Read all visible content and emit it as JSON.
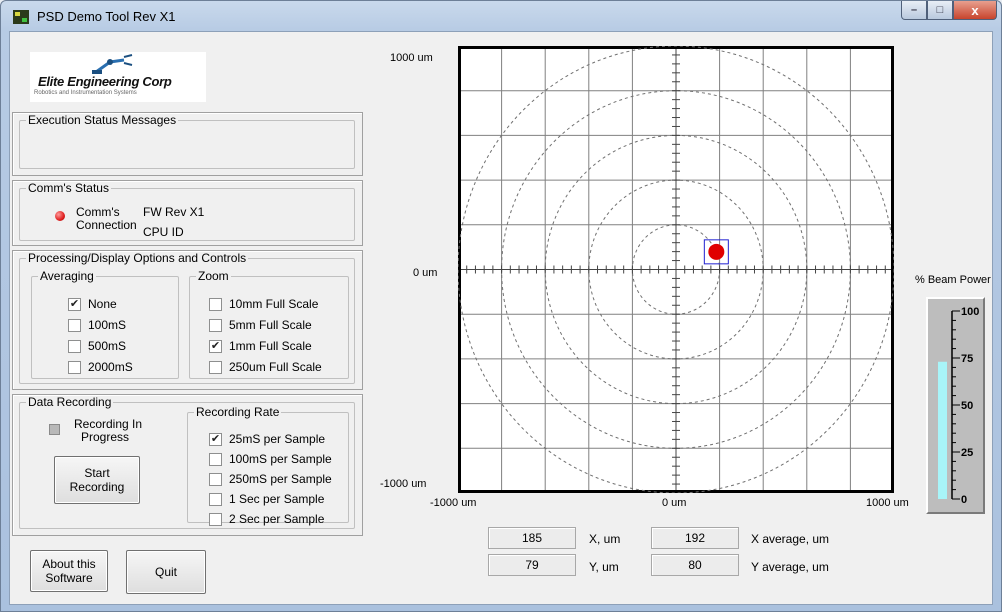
{
  "window": {
    "title": "PSD Demo Tool  Rev X1",
    "minimize": "–",
    "maximize": "□",
    "close": "x"
  },
  "logo": {
    "name": "Elite Engineering Corp",
    "tagline": "Robotics and Instrumentation Systems"
  },
  "execution_status": {
    "title": "Execution Status Messages",
    "message": ""
  },
  "comms_status": {
    "title": "Comm's Status",
    "connection_label_1": "Comm's",
    "connection_label_2": "Connection",
    "led_color": "#e02020",
    "fw_rev": "FW Rev X1",
    "cpu_id": "CPU ID"
  },
  "processing": {
    "title": "Processing/Display Options and Controls",
    "averaging": {
      "title": "Averaging",
      "options": [
        {
          "label": "None",
          "checked": true
        },
        {
          "label": "100mS",
          "checked": false
        },
        {
          "label": "500mS",
          "checked": false
        },
        {
          "label": "2000mS",
          "checked": false
        }
      ]
    },
    "zoom": {
      "title": "Zoom",
      "options": [
        {
          "label": "10mm Full Scale",
          "checked": false
        },
        {
          "label": "5mm Full Scale",
          "checked": false
        },
        {
          "label": "1mm Full Scale",
          "checked": true
        },
        {
          "label": "250um Full Scale",
          "checked": false
        }
      ]
    }
  },
  "data_recording": {
    "title": "Data Recording",
    "indicator_label_1": "Recording In",
    "indicator_label_2": "Progress",
    "start_label_1": "Start",
    "start_label_2": "Recording",
    "rate": {
      "title": "Recording Rate",
      "options": [
        {
          "label": "25mS per Sample",
          "checked": true
        },
        {
          "label": "100mS per Sample",
          "checked": false
        },
        {
          "label": "250mS per Sample",
          "checked": false
        },
        {
          "label": "1 Sec per Sample",
          "checked": false
        },
        {
          "label": "2 Sec per Sample",
          "checked": false
        }
      ]
    }
  },
  "buttons": {
    "about_1": "About this",
    "about_2": "Software",
    "quit": "Quit"
  },
  "plot": {
    "y_top": "1000 um",
    "y_mid": "0 um",
    "y_bottom": "-1000 um",
    "x_left": "-1000 um",
    "x_mid": "0 um",
    "x_right": "1000 um",
    "range_um": [
      -1000,
      1000
    ],
    "spot_x_um": 185,
    "spot_y_um": 79,
    "spot_color": "#e00000"
  },
  "readouts": {
    "x": "185",
    "x_label": "X, um",
    "y": "79",
    "y_label": "Y, um",
    "x_avg": "192",
    "x_avg_label": "X average, um",
    "y_avg": "80",
    "y_avg_label": "Y average, um"
  },
  "beam_power": {
    "title": "% Beam Power",
    "ticks": [
      "100",
      "75",
      "50",
      "25",
      "0"
    ],
    "level_percent": 73,
    "bar_color": "#a8f4f8"
  }
}
